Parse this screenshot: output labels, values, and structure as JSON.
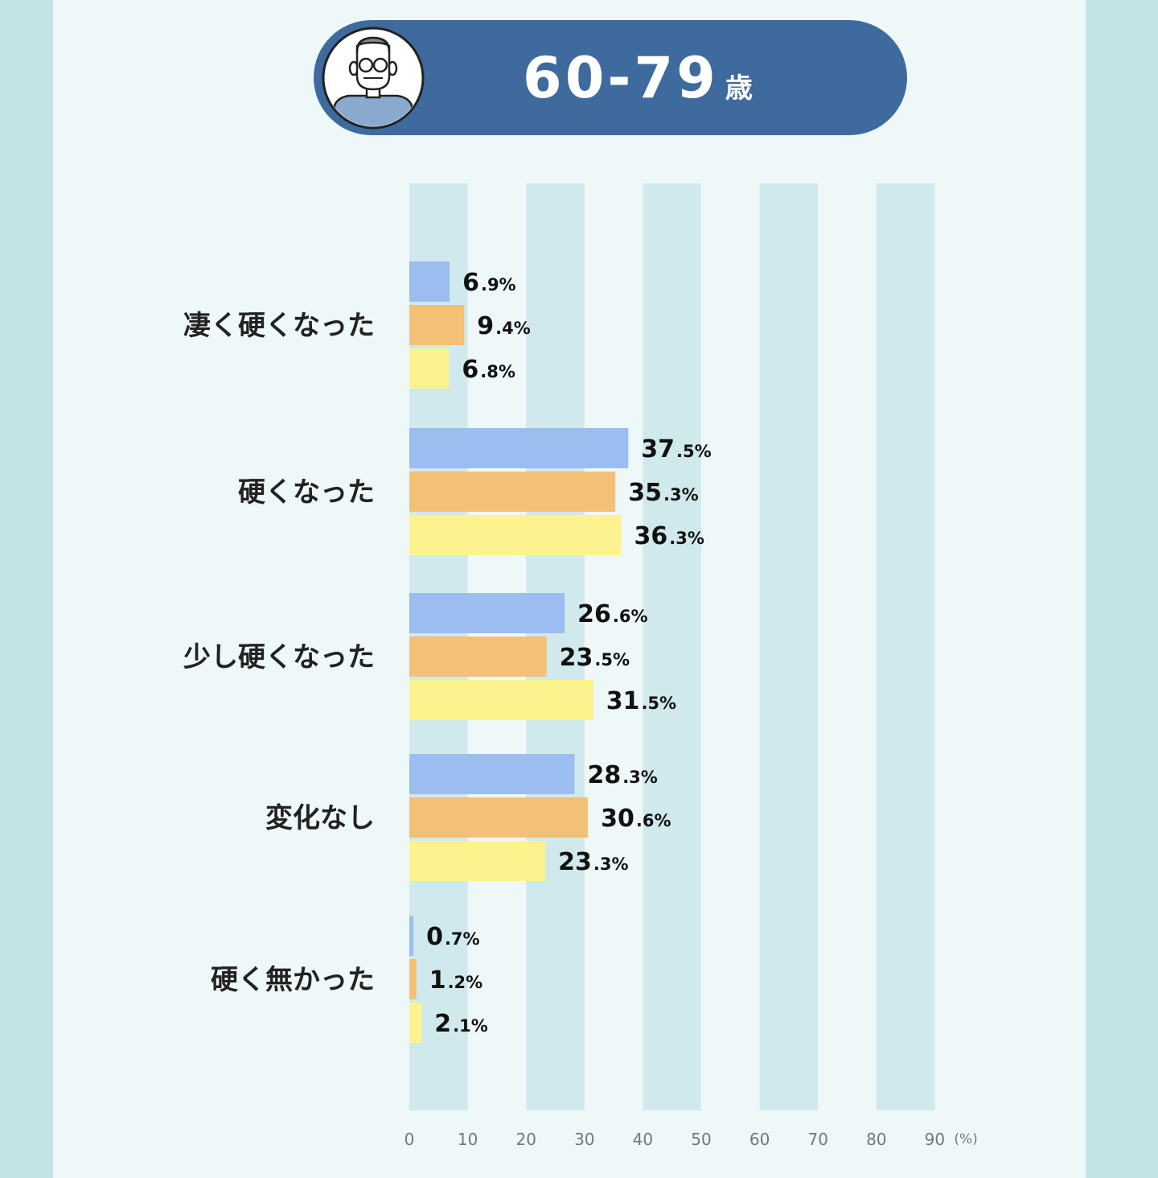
{
  "header": {
    "title_main": "60-79",
    "title_suffix": "歳"
  },
  "colors": {
    "background_outer": "#c3e4e7",
    "panel": "#eef8f9",
    "band": "#d0e9ec",
    "header": "#3e6a9e",
    "series": [
      "#9bbdf0",
      "#f2c077",
      "#fdf38e"
    ]
  },
  "chart_data": {
    "type": "bar",
    "orientation": "horizontal",
    "categories": [
      "凄く硬くなった",
      "硬くなった",
      "少し硬くなった",
      "変化なし",
      "硬く無かった"
    ],
    "series": [
      {
        "values": [
          6.9,
          37.5,
          26.6,
          28.3,
          0.7
        ]
      },
      {
        "values": [
          9.4,
          35.3,
          23.5,
          30.6,
          1.2
        ]
      },
      {
        "values": [
          6.8,
          36.3,
          31.5,
          23.3,
          2.1
        ]
      }
    ],
    "value_labels": [
      [
        {
          "int": "6",
          "dec": ".9%"
        },
        {
          "int": "37",
          "dec": ".5%"
        },
        {
          "int": "26",
          "dec": ".6%"
        },
        {
          "int": "28",
          "dec": ".3%"
        },
        {
          "int": "0",
          "dec": ".7%"
        }
      ],
      [
        {
          "int": "9",
          "dec": ".4%"
        },
        {
          "int": "35",
          "dec": ".3%"
        },
        {
          "int": "23",
          "dec": ".5%"
        },
        {
          "int": "30",
          "dec": ".6%"
        },
        {
          "int": "1",
          "dec": ".2%"
        }
      ],
      [
        {
          "int": "6",
          "dec": ".8%"
        },
        {
          "int": "36",
          "dec": ".3%"
        },
        {
          "int": "31",
          "dec": ".5%"
        },
        {
          "int": "23",
          "dec": ".3%"
        },
        {
          "int": "2",
          "dec": ".1%"
        }
      ]
    ],
    "xlim": [
      0,
      90
    ],
    "x_ticks": [
      "0",
      "10",
      "20",
      "30",
      "40",
      "50",
      "60",
      "70",
      "80",
      "90"
    ],
    "x_unit": "(%)",
    "grid": "alternating vertical bands",
    "legend": "none"
  }
}
